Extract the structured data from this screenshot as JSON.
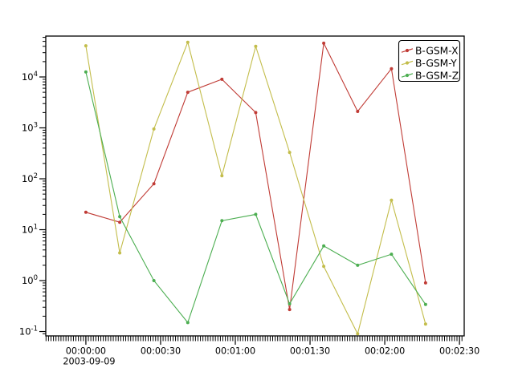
{
  "window": {
    "background": "#ffffff"
  },
  "chart_data": {
    "type": "line",
    "title": "",
    "xlabel": "",
    "ylabel": "",
    "grid": false,
    "x_axis": {
      "date_label": "2003-09-09",
      "major_tick_seconds": [
        0,
        30,
        60,
        90,
        120,
        150
      ],
      "major_tick_labels": [
        "00:00:00",
        "00:00:30",
        "00:01:00",
        "00:01:30",
        "00:02:00",
        "00:02:30"
      ],
      "minor_tick_interval_seconds": 1,
      "range_seconds": [
        -16.1,
        151.9
      ]
    },
    "y_axis": {
      "scale": "log",
      "major_tick_exponents": [
        -1,
        0,
        1,
        2,
        3,
        4
      ],
      "base_label": "10",
      "log10_range": [
        -1.086,
        4.803
      ]
    },
    "sample_times_seconds": [
      0,
      13.6,
      27.3,
      40.9,
      54.6,
      68.2,
      81.8,
      95.5,
      109.1,
      122.7,
      136.4
    ],
    "series": [
      {
        "name": "B-GSM-X",
        "color": "#c03b35",
        "values": [
          22,
          14,
          80,
          5000,
          9000,
          2000,
          0.27,
          46000,
          2100,
          14500,
          0.9
        ]
      },
      {
        "name": "B-GSM-Y",
        "color": "#c3bd4b",
        "values": [
          41000,
          3.5,
          950,
          48000,
          115,
          40000,
          330,
          1.9,
          0.09,
          38,
          0.14
        ]
      },
      {
        "name": "B-GSM-Z",
        "color": "#4cae51",
        "values": [
          12500,
          18,
          1.0,
          0.15,
          15,
          20,
          0.35,
          4.8,
          2.0,
          3.3,
          0.34
        ]
      }
    ],
    "legend": {
      "position": "top-right",
      "entries": [
        "B-GSM-X",
        "B-GSM-Y",
        "B-GSM-Z"
      ]
    },
    "axis_color": "#000000"
  }
}
